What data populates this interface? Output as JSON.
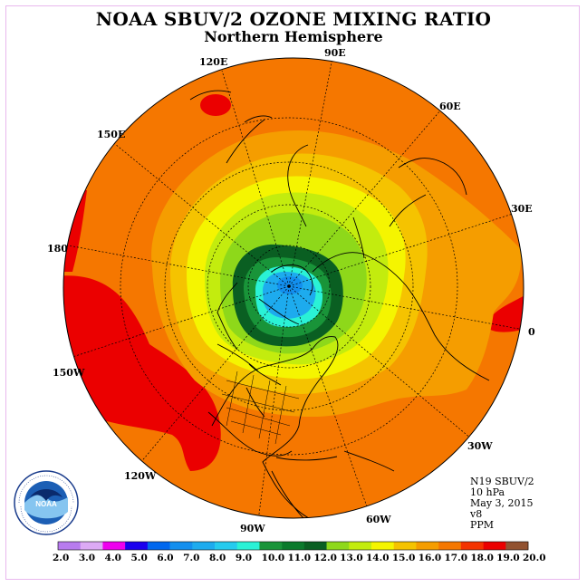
{
  "title": "NOAA SBUV/2 OZONE MIXING RATIO",
  "subtitle": "Northern Hemisphere",
  "longitude_labels": [
    "90E",
    "60E",
    "30E",
    "0",
    "30W",
    "60W",
    "90W",
    "120W",
    "150W",
    "180",
    "150E",
    "120E"
  ],
  "info": {
    "instrument": "N19 SBUV/2",
    "pressure": "10 hPa",
    "date": "May 3, 2015",
    "version": "v8",
    "units": "PPM"
  },
  "colorbar": {
    "labels": [
      "2.0",
      "3.0",
      "4.0",
      "5.0",
      "6.0",
      "7.0",
      "8.0",
      "9.0",
      "10.0",
      "11.0",
      "12.0",
      "13.0",
      "14.0",
      "15.0",
      "16.0",
      "17.0",
      "18.0",
      "19.0",
      "20.0"
    ],
    "colors": [
      "#b77bee",
      "#dcaaf5",
      "#ee00ee",
      "#1a00ee",
      "#0067ee",
      "#138fee",
      "#1dabee",
      "#25cbee",
      "#2af2d6",
      "#199439",
      "#0b7a2c",
      "#0a5f22",
      "#8ed81a",
      "#c3ec0e",
      "#f5f500",
      "#f5c300",
      "#f59d00",
      "#f57700",
      "#f43300",
      "#eb0000",
      "#925230"
    ]
  },
  "map_colors": {
    "ocean_base": "#f57700",
    "band_18": "#eb0000",
    "band_16": "#f59d00",
    "band_15": "#f5c300",
    "band_14": "#f5f500",
    "band_13": "#c3ec0e",
    "band_12": "#8ed81a",
    "band_11": "#0a5f22",
    "band_10": "#199439",
    "band_9": "#2af2d6",
    "band_8": "#1dabee",
    "band_7": "#138fee"
  }
}
